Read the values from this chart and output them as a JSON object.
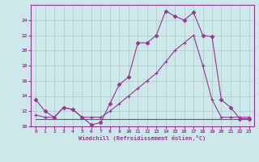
{
  "xlabel": "Windchill (Refroidissement éolien,°C)",
  "bg_color": "#cce8e8",
  "grid_color": "#b0c8c8",
  "line_color": "#993399",
  "xlim": [
    -0.5,
    23.5
  ],
  "ylim": [
    10,
    26
  ],
  "yticks": [
    10,
    12,
    14,
    16,
    18,
    20,
    22,
    24
  ],
  "xticks": [
    0,
    1,
    2,
    3,
    4,
    5,
    6,
    7,
    8,
    9,
    10,
    11,
    12,
    13,
    14,
    15,
    16,
    17,
    18,
    19,
    20,
    21,
    22,
    23
  ],
  "line1_x": [
    0,
    1,
    2,
    3,
    4,
    5,
    6,
    7,
    8,
    9,
    10,
    11,
    12,
    13,
    14,
    15,
    16,
    17,
    18,
    19,
    20,
    21,
    22,
    23
  ],
  "line1_y": [
    13.5,
    12.0,
    11.2,
    12.5,
    12.2,
    11.2,
    10.2,
    10.5,
    13.0,
    15.5,
    16.5,
    21.0,
    21.0,
    22.0,
    25.2,
    24.5,
    24.0,
    25.0,
    22.0,
    21.8,
    13.5,
    12.5,
    11.0,
    11.0
  ],
  "line2_x": [
    0,
    1,
    2,
    3,
    4,
    5,
    6,
    7,
    8,
    9,
    10,
    11,
    12,
    13,
    14,
    15,
    16,
    17,
    18,
    19,
    20,
    21,
    22,
    23
  ],
  "line2_y": [
    11.5,
    11.2,
    11.2,
    12.5,
    12.2,
    11.2,
    11.2,
    11.2,
    12.0,
    13.0,
    14.0,
    15.0,
    16.0,
    17.0,
    18.5,
    20.0,
    21.0,
    22.0,
    18.0,
    13.5,
    11.2,
    11.2,
    11.2,
    11.2
  ],
  "line3_x": [
    0,
    1,
    2,
    3,
    4,
    5,
    6,
    7,
    8,
    9,
    10,
    11,
    12,
    13,
    14,
    15,
    16,
    17,
    18,
    19,
    20,
    21,
    22,
    23
  ],
  "line3_y": [
    11.0,
    11.0,
    11.0,
    11.0,
    11.0,
    11.0,
    11.0,
    11.0,
    11.0,
    11.0,
    11.0,
    11.0,
    11.0,
    11.0,
    11.0,
    11.0,
    11.0,
    11.0,
    11.0,
    11.0,
    11.0,
    11.0,
    11.0,
    11.0
  ]
}
